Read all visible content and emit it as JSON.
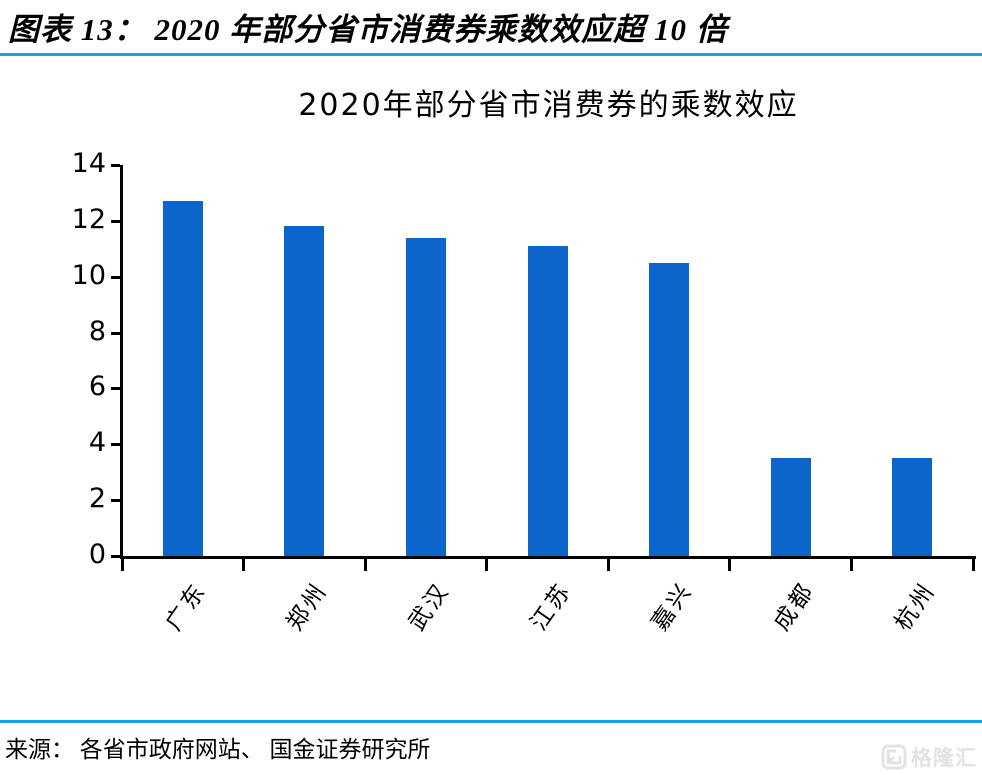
{
  "page": {
    "title": "图表 13：  2020 年部分省市消费券乘数效应超 10 倍"
  },
  "chart_data": {
    "type": "bar",
    "title": "2020年部分省市消费券的乘数效应",
    "categories": [
      "广东",
      "郑州",
      "武汉",
      "江苏",
      "嘉兴",
      "成都",
      "杭州"
    ],
    "values": [
      12.7,
      11.8,
      11.4,
      11.1,
      10.5,
      3.5,
      3.5
    ],
    "xlabel": "",
    "ylabel": "",
    "ylim": [
      0,
      14
    ],
    "yticks": [
      0,
      2,
      4,
      6,
      8,
      10,
      12,
      14
    ],
    "grid": false,
    "legend": "none",
    "bar_color": "#0B65CA"
  },
  "source": {
    "label": "来源： 各省市政府网站、 国金证券研究所"
  },
  "watermark": {
    "brand": "格隆汇",
    "icon": "gelonghui-logo"
  },
  "colors": {
    "bar": "#0B65CA",
    "divider": "#16A0DC",
    "axis": "#000000",
    "text": "#000000",
    "watermark": "#E3E3E3"
  }
}
